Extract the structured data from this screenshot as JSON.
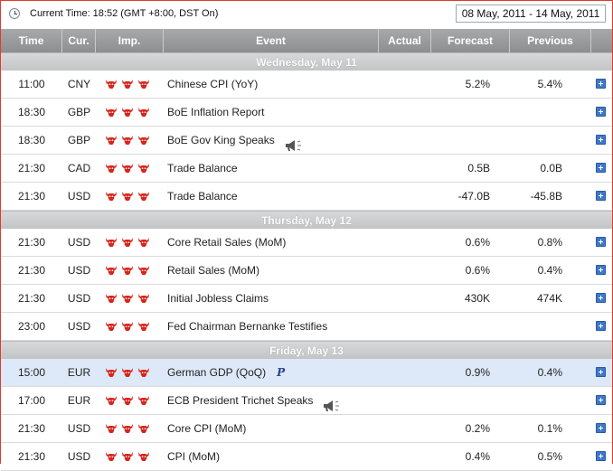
{
  "header": {
    "current_time": "Current Time: 18:52 (GMT +8:00, DST On)",
    "date_range": "08 May, 2011 - 14 May, 2011"
  },
  "columns": {
    "time": "Time",
    "cur": "Cur.",
    "imp": "Imp.",
    "event": "Event",
    "actual": "Actual",
    "forecast": "Forecast",
    "previous": "Previous"
  },
  "colors": {
    "frame_border": "#e23a2e",
    "header_bg": "#8c8e90",
    "highlight_row": "#dde8f8",
    "bull_red": "#d4271d",
    "plus_blue": "#3f78c8"
  },
  "days": [
    {
      "label": "Wednesday, May 11",
      "rows": [
        {
          "time": "11:00",
          "cur": "CNY",
          "event": "Chinese CPI (YoY)",
          "actual": "",
          "forecast": "5.2%",
          "previous": "5.4%",
          "icon": ""
        },
        {
          "time": "18:30",
          "cur": "GBP",
          "event": "BoE Inflation Report",
          "actual": "",
          "forecast": "",
          "previous": "",
          "icon": ""
        },
        {
          "time": "18:30",
          "cur": "GBP",
          "event": "BoE Gov King Speaks",
          "actual": "",
          "forecast": "",
          "previous": "",
          "icon": "speaker-icon"
        },
        {
          "time": "21:30",
          "cur": "CAD",
          "event": "Trade Balance",
          "actual": "",
          "forecast": "0.5B",
          "previous": "0.0B",
          "icon": ""
        },
        {
          "time": "21:30",
          "cur": "USD",
          "event": "Trade Balance",
          "actual": "",
          "forecast": "-47.0B",
          "previous": "-45.8B",
          "icon": ""
        }
      ]
    },
    {
      "label": "Thursday, May 12",
      "rows": [
        {
          "time": "21:30",
          "cur": "USD",
          "event": "Core Retail Sales (MoM)",
          "actual": "",
          "forecast": "0.6%",
          "previous": "0.8%",
          "icon": ""
        },
        {
          "time": "21:30",
          "cur": "USD",
          "event": "Retail Sales (MoM)",
          "actual": "",
          "forecast": "0.6%",
          "previous": "0.4%",
          "icon": ""
        },
        {
          "time": "21:30",
          "cur": "USD",
          "event": "Initial Jobless Claims",
          "actual": "",
          "forecast": "430K",
          "previous": "474K",
          "icon": ""
        },
        {
          "time": "23:00",
          "cur": "USD",
          "event": "Fed Chairman Bernanke Testifies",
          "actual": "",
          "forecast": "",
          "previous": "",
          "icon": ""
        }
      ]
    },
    {
      "label": "Friday, May 13",
      "rows": [
        {
          "time": "15:00",
          "cur": "EUR",
          "event": "German GDP (QoQ)",
          "actual": "",
          "forecast": "0.9%",
          "previous": "0.4%",
          "icon": "preliminary-icon",
          "badge": "P",
          "highlight": true
        },
        {
          "time": "17:00",
          "cur": "EUR",
          "event": "ECB President Trichet Speaks",
          "actual": "",
          "forecast": "",
          "previous": "",
          "icon": "speaker-icon"
        },
        {
          "time": "21:30",
          "cur": "USD",
          "event": "Core CPI (MoM)",
          "actual": "",
          "forecast": "0.2%",
          "previous": "0.1%",
          "icon": ""
        },
        {
          "time": "21:30",
          "cur": "USD",
          "event": "CPI (MoM)",
          "actual": "",
          "forecast": "0.4%",
          "previous": "0.5%",
          "icon": ""
        }
      ]
    }
  ],
  "importance_icon": "bull-icon",
  "expand_icon": "plus-icon"
}
